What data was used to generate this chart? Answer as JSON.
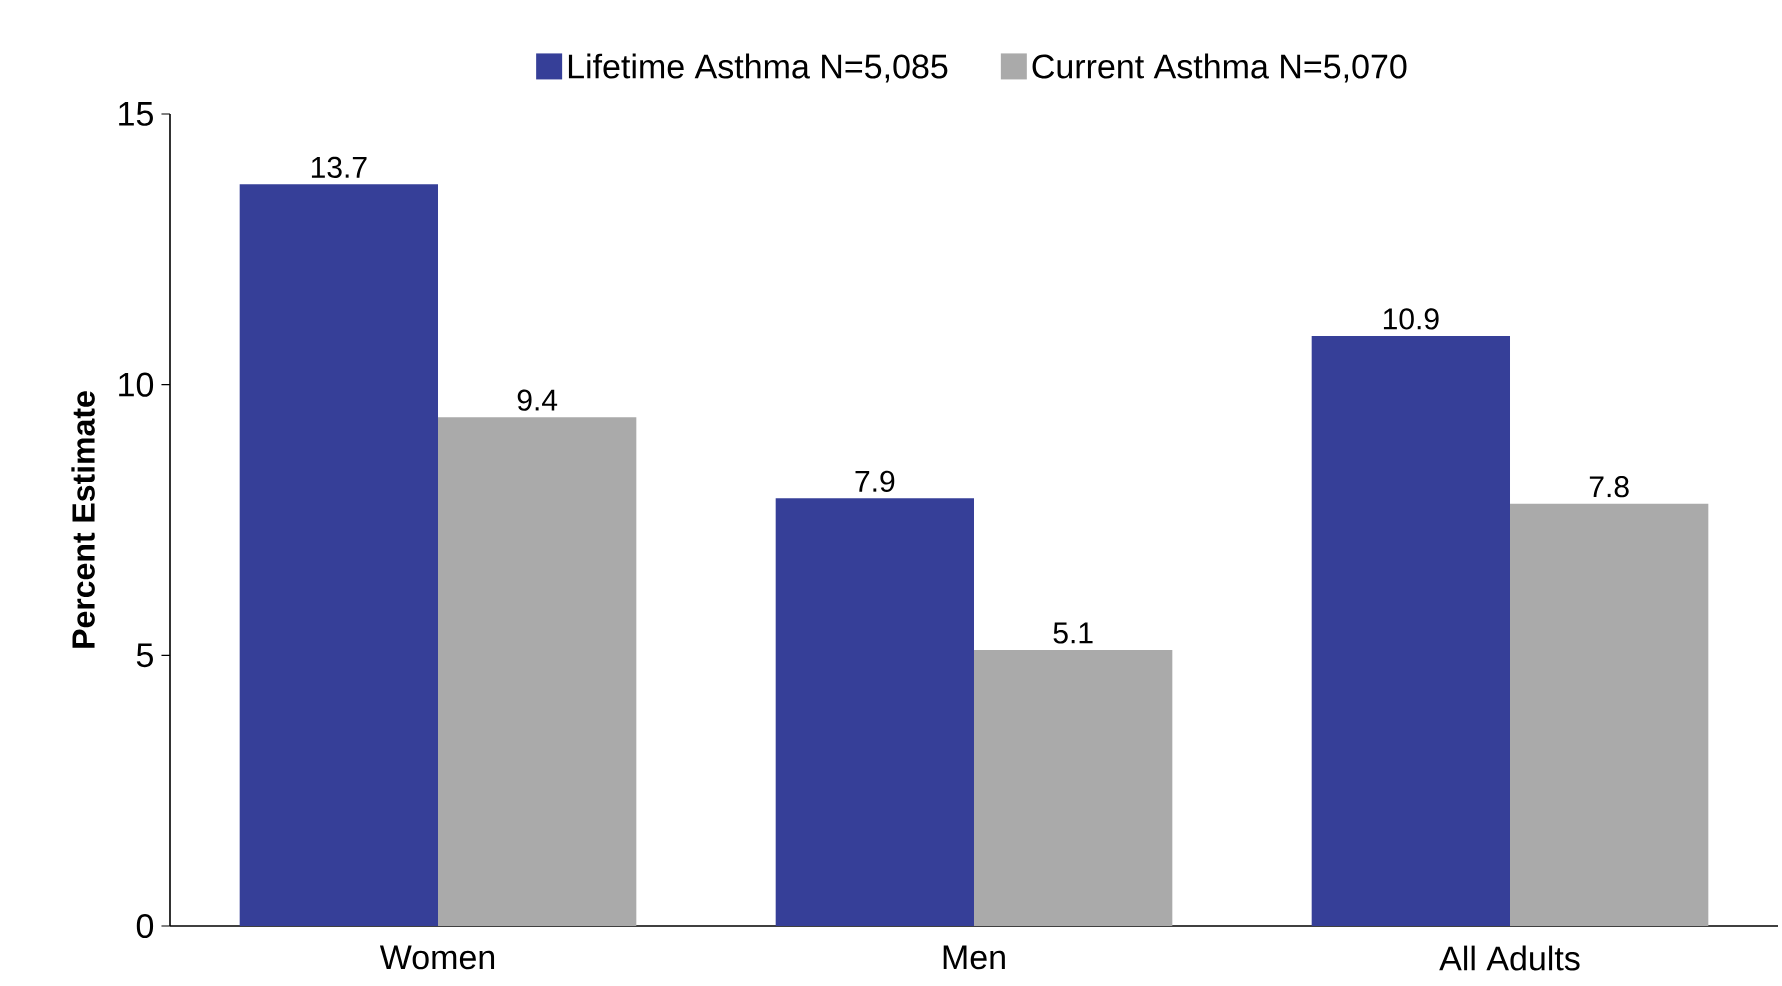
{
  "chart_data": {
    "type": "bar",
    "categories": [
      "Women",
      "Men",
      "All Adults"
    ],
    "ylabel": "Percent Estimate",
    "series": [
      {
        "name": "Lifetime Asthma N=5,085",
        "color": "#363f98",
        "values": [
          13.7,
          7.9,
          10.9
        ]
      },
      {
        "name": "Current Asthma N=5,070",
        "color": "#aaaaaa",
        "values": [
          9.4,
          5.1,
          7.8
        ]
      }
    ],
    "ylim": [
      0,
      15
    ],
    "yticks": [
      0,
      5,
      10,
      15
    ],
    "data_labels": true,
    "legend": "top",
    "grid": false
  }
}
